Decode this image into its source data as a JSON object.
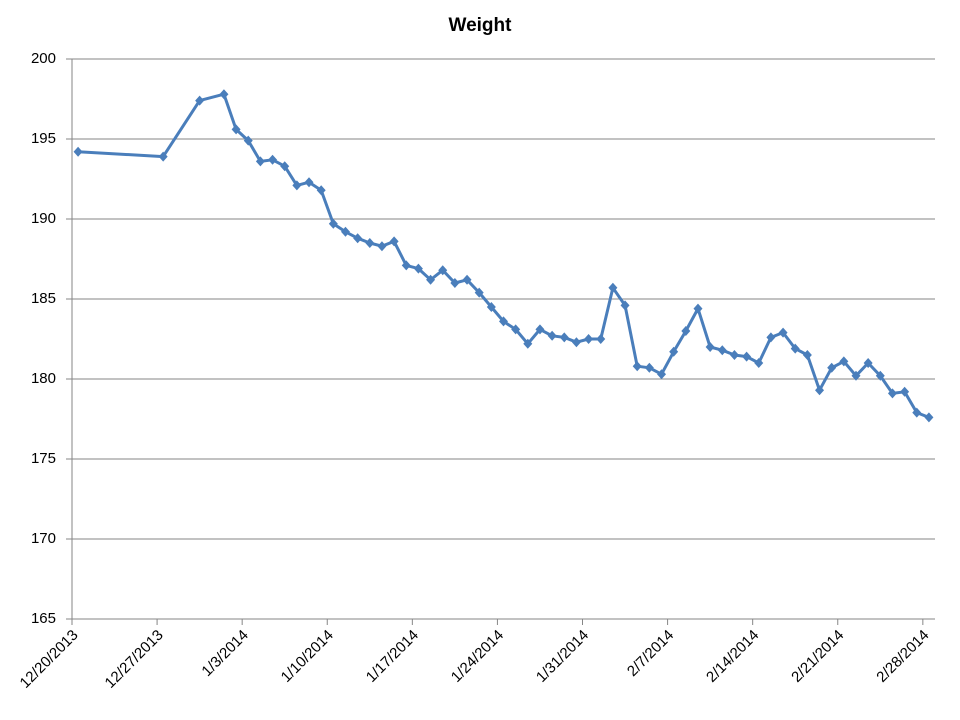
{
  "chart_data": {
    "type": "line",
    "title": "Weight",
    "x": [
      "12/20/2013",
      "12/27/2013",
      "12/30/2013",
      "1/1/2014",
      "1/2/2014",
      "1/3/2014",
      "1/4/2014",
      "1/5/2014",
      "1/6/2014",
      "1/7/2014",
      "1/8/2014",
      "1/9/2014",
      "1/10/2014",
      "1/11/2014",
      "1/12/2014",
      "1/13/2014",
      "1/14/2014",
      "1/15/2014",
      "1/16/2014",
      "1/17/2014",
      "1/18/2014",
      "1/19/2014",
      "1/20/2014",
      "1/21/2014",
      "1/22/2014",
      "1/23/2014",
      "1/24/2014",
      "1/25/2014",
      "1/26/2014",
      "1/27/2014",
      "1/28/2014",
      "1/29/2014",
      "1/30/2014",
      "1/31/2014",
      "2/1/2014",
      "2/2/2014",
      "2/3/2014",
      "2/4/2014",
      "2/5/2014",
      "2/6/2014",
      "2/7/2014",
      "2/8/2014",
      "2/9/2014",
      "2/10/2014",
      "2/11/2014",
      "2/12/2014",
      "2/13/2014",
      "2/14/2014",
      "2/15/2014",
      "2/16/2014",
      "2/17/2014",
      "2/18/2014",
      "2/19/2014",
      "2/20/2014",
      "2/21/2014",
      "2/22/2014",
      "2/23/2014",
      "2/24/2014",
      "2/25/2014",
      "2/26/2014",
      "2/27/2014",
      "2/28/2014"
    ],
    "values": [
      194.2,
      193.9,
      197.4,
      197.8,
      195.6,
      194.9,
      193.6,
      193.7,
      193.3,
      192.1,
      192.3,
      191.8,
      189.7,
      189.2,
      188.8,
      188.5,
      188.3,
      188.6,
      187.1,
      186.9,
      186.2,
      186.8,
      186.0,
      186.2,
      185.4,
      184.5,
      183.6,
      183.1,
      182.2,
      183.1,
      182.7,
      182.6,
      182.3,
      182.5,
      182.5,
      185.7,
      184.6,
      180.8,
      180.7,
      180.3,
      181.7,
      183.0,
      184.4,
      182.0,
      181.8,
      181.5,
      181.4,
      181.0,
      182.6,
      182.9,
      181.9,
      181.5,
      179.3,
      180.7,
      181.1,
      180.2,
      181.0,
      180.2,
      179.1,
      179.2,
      177.9,
      177.6
    ],
    "color": "#4a7ebb",
    "xlim": [
      "12/20/2013",
      "3/1/2014"
    ],
    "xticks": [
      "12/20/2013",
      "12/27/2013",
      "1/3/2014",
      "1/10/2014",
      "1/17/2014",
      "1/24/2014",
      "1/31/2014",
      "2/7/2014",
      "2/14/2014",
      "2/21/2014",
      "2/28/2014"
    ],
    "ylim": [
      165,
      200
    ],
    "yticks": [
      165,
      170,
      175,
      180,
      185,
      190,
      195,
      200
    ],
    "grid": true
  }
}
